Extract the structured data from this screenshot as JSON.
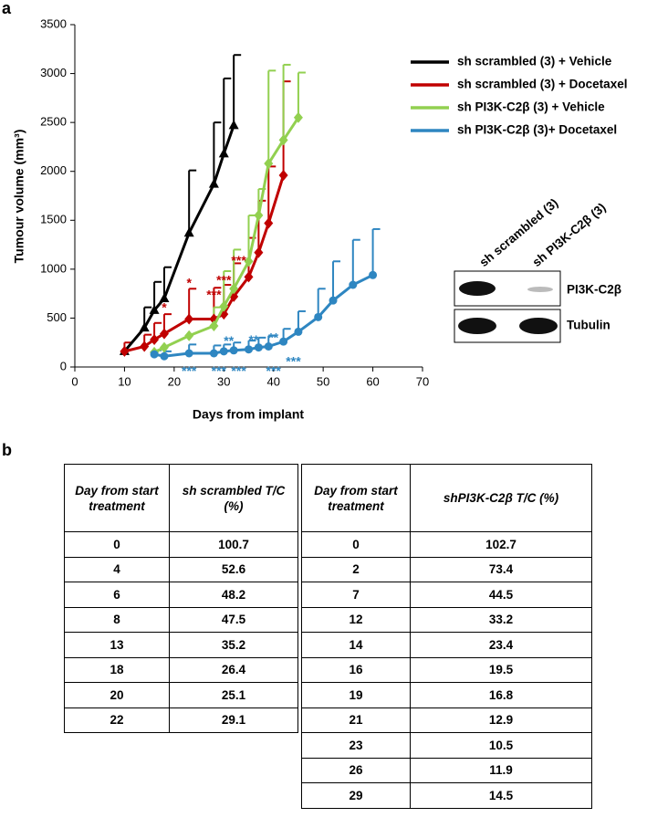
{
  "panel_labels": [
    "a",
    "b"
  ],
  "chart_data": {
    "type": "line",
    "x_label": "Days from implant",
    "y_label": "Tumour volume (mm³)",
    "xlim": [
      0,
      70
    ],
    "xticks": [
      0,
      10,
      20,
      30,
      40,
      50,
      60,
      70
    ],
    "ylim": [
      0,
      3500
    ],
    "yticks": [
      0,
      500,
      1000,
      1500,
      2000,
      2500,
      3000,
      3500
    ],
    "legend": "upper right",
    "series": [
      {
        "name": "sh scrambled (3) + Vehicle",
        "color": "#000000",
        "marker": "triangle",
        "x": [
          10,
          14,
          16,
          18,
          23,
          28,
          30,
          32
        ],
        "values": [
          160,
          400,
          580,
          700,
          1370,
          1870,
          2180,
          2470
        ],
        "errors": [
          null,
          210,
          290,
          320,
          640,
          630,
          770,
          720
        ]
      },
      {
        "name": "sh scrambled (3) + Docetaxel",
        "color": "#c00000",
        "marker": "diamond",
        "x": [
          10,
          14,
          16,
          18,
          23,
          28,
          30,
          32,
          35,
          37,
          39,
          42
        ],
        "values": [
          160,
          210,
          280,
          340,
          490,
          490,
          540,
          720,
          920,
          1170,
          1470,
          1960
        ],
        "errors": [
          90,
          120,
          170,
          200,
          310,
          320,
          300,
          340,
          400,
          530,
          580,
          960
        ]
      },
      {
        "name": "sh PI3K-C2β (3) + Vehicle",
        "color": "#92d050",
        "marker": "diamond",
        "x": [
          16,
          18,
          23,
          28,
          30,
          32,
          35,
          37,
          39,
          42,
          45
        ],
        "values": [
          150,
          200,
          320,
          420,
          620,
          800,
          1080,
          1550,
          2080,
          2320,
          2550
        ],
        "errors": [
          null,
          null,
          null,
          190,
          360,
          400,
          470,
          270,
          950,
          770,
          460
        ]
      },
      {
        "name": "sh PI3K-C2β (3)+ Docetaxel",
        "color": "#2e86c1",
        "marker": "circle",
        "x": [
          16,
          18,
          23,
          28,
          30,
          32,
          35,
          37,
          39,
          42,
          45,
          49,
          52,
          56,
          60
        ],
        "values": [
          130,
          110,
          140,
          140,
          160,
          170,
          180,
          200,
          210,
          260,
          360,
          510,
          680,
          840,
          940
        ],
        "errors": [
          40,
          50,
          90,
          80,
          70,
          80,
          90,
          100,
          110,
          130,
          210,
          290,
          400,
          460,
          470
        ]
      }
    ],
    "annotations": [
      {
        "text": "*",
        "x": 18,
        "y": 600,
        "color": "#c00000"
      },
      {
        "text": "*",
        "x": 23,
        "y": 850,
        "color": "#c00000"
      },
      {
        "text": "***",
        "x": 28,
        "y": 730,
        "color": "#c00000"
      },
      {
        "text": "***",
        "x": 30,
        "y": 880,
        "color": "#c00000"
      },
      {
        "text": "***",
        "x": 33,
        "y": 1080,
        "color": "#c00000"
      },
      {
        "text": "***",
        "x": 23,
        "y": -50,
        "color": "#2e86c1"
      },
      {
        "text": "***",
        "x": 29,
        "y": -50,
        "color": "#2e86c1"
      },
      {
        "text": "**",
        "x": 31,
        "y": 260,
        "color": "#2e86c1"
      },
      {
        "text": "***",
        "x": 33,
        "y": -50,
        "color": "#2e86c1"
      },
      {
        "text": "**",
        "x": 36,
        "y": 270,
        "color": "#2e86c1"
      },
      {
        "text": "**",
        "x": 40,
        "y": 290,
        "color": "#2e86c1"
      },
      {
        "text": "***",
        "x": 40,
        "y": -50,
        "color": "#2e86c1"
      },
      {
        "text": "***",
        "x": 44,
        "y": 50,
        "color": "#2e86c1"
      }
    ]
  },
  "blot": {
    "lanes": [
      "sh scrambled (3)",
      "sh PI3K-C2β (3)"
    ],
    "rows": [
      "PI3K-C2β",
      "Tubulin"
    ]
  },
  "tables": [
    {
      "header": [
        "Day from start treatment",
        "sh scrambled T/C (%)"
      ],
      "rows": [
        [
          0,
          100.7
        ],
        [
          4,
          52.6
        ],
        [
          6,
          48.2
        ],
        [
          8,
          47.5
        ],
        [
          13,
          35.2
        ],
        [
          18,
          26.4
        ],
        [
          20,
          25.1
        ],
        [
          22,
          29.1
        ]
      ]
    },
    {
      "header": [
        "Day from start treatment",
        "shPI3K-C2β T/C (%)"
      ],
      "rows": [
        [
          0,
          102.7
        ],
        [
          2,
          73.4
        ],
        [
          7,
          44.5
        ],
        [
          12,
          33.2
        ],
        [
          14,
          23.4
        ],
        [
          16,
          19.5
        ],
        [
          19,
          16.8
        ],
        [
          21,
          12.9
        ],
        [
          23,
          10.5
        ],
        [
          26,
          11.9
        ],
        [
          29,
          14.5
        ]
      ]
    }
  ]
}
